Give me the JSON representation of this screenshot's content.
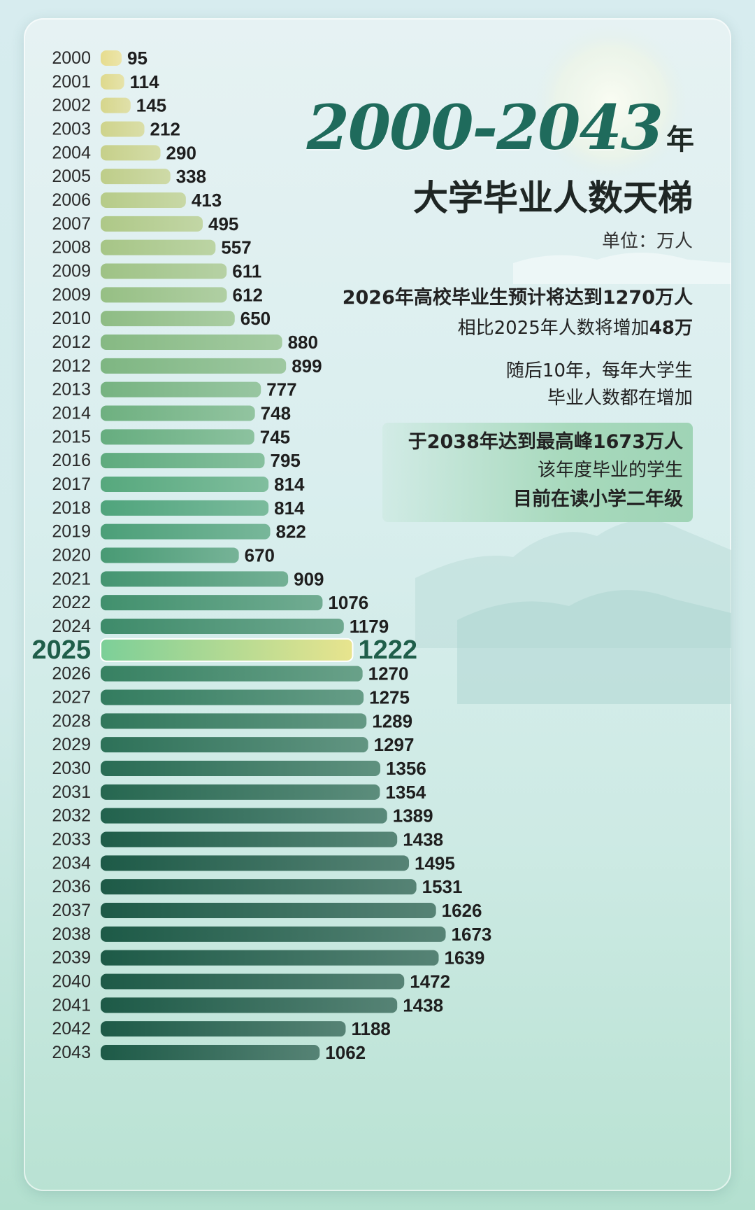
{
  "title": {
    "main": "2000-2043",
    "nian": "年",
    "sub": "大学毕业人数天梯",
    "unit": "单位：万人"
  },
  "notes": {
    "line1": "2026年高校毕业生预计将达到1270万人",
    "line2_prefix": "相比2025年人数将增加",
    "line2_value": "48万",
    "line3": "随后10年，每年大学生",
    "line4": "毕业人数都在增加",
    "peak1": "于2038年达到最高峰1673万人",
    "peak2": "该年度毕业的学生",
    "peak3": "目前在读小学二年级"
  },
  "chart_data": {
    "type": "bar",
    "orientation": "horizontal",
    "highlight": "2025",
    "categories": [
      "2000",
      "2001",
      "2002",
      "2003",
      "2004",
      "2005",
      "2006",
      "2007",
      "2008",
      "2009",
      "2009",
      "2010",
      "2012",
      "2012",
      "2013",
      "2014",
      "2015",
      "2016",
      "2017",
      "2018",
      "2019",
      "2020",
      "2021",
      "2022",
      "2024",
      "2025",
      "2026",
      "2027",
      "2028",
      "2029",
      "2030",
      "2031",
      "2032",
      "2033",
      "2034",
      "2036",
      "2037",
      "2038",
      "2039",
      "2040",
      "2041",
      "2042",
      "2043"
    ],
    "values": [
      95,
      114,
      145,
      212,
      290,
      338,
      413,
      495,
      557,
      611,
      612,
      650,
      880,
      899,
      777,
      748,
      745,
      795,
      814,
      814,
      822,
      670,
      909,
      1076,
      1179,
      1222,
      1270,
      1275,
      1289,
      1297,
      1356,
      1354,
      1389,
      1438,
      1495,
      1531,
      1626,
      1673,
      1639,
      1472,
      1438,
      1188,
      1062
    ],
    "colors": {
      "early": "#e6dc8e",
      "mid": "#4fa57c",
      "late": "#1d5a47",
      "highlight": "#e8e48e",
      "highlight_text": "#1f5e4a"
    }
  }
}
